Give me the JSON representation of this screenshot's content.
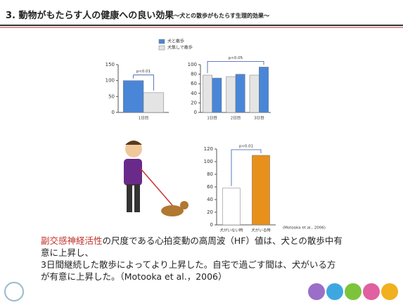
{
  "title": "3. 動物がもたらす人の健康への良い効果",
  "subtitle": "～犬との散歩がもたらす生理的効果～",
  "chart_data": [
    {
      "type": "bar",
      "categories": [
        "1日目"
      ],
      "series": [
        {
          "name": "犬と散歩",
          "color": "#4a86d8",
          "values": [
            100
          ]
        },
        {
          "name": "犬無しで散歩",
          "color": "#e4e4e4",
          "values": [
            62
          ]
        }
      ],
      "ylim": [
        0,
        150
      ],
      "yticks": [
        0,
        50,
        100,
        150
      ],
      "annotation": "p<0.01"
    },
    {
      "type": "bar",
      "categories": [
        "1日目",
        "2日目",
        "3日目"
      ],
      "series": [
        {
          "color": "#e4e4e4",
          "values": [
            78,
            75,
            78
          ]
        },
        {
          "color": "#4a86d8",
          "values": [
            72,
            80,
            95
          ]
        }
      ],
      "ylim": [
        0,
        100
      ],
      "yticks": [
        0,
        20,
        40,
        60,
        80,
        100
      ],
      "annotation": "p<0.05"
    },
    {
      "type": "bar",
      "categories": [
        "犬がいない時",
        "犬がいる時"
      ],
      "values": [
        58,
        110
      ],
      "colors": [
        "#ffffff",
        "#e8901c"
      ],
      "ylim": [
        0,
        120
      ],
      "yticks": [
        0,
        20,
        40,
        60,
        80,
        100,
        120
      ],
      "annotation": "p<0.01",
      "citation": "(Motooka et al., 2006)"
    }
  ],
  "body": {
    "highlight": "副交感神経活性",
    "lines": [
      "の尺度である心拍変動の高周波（HF）値は、犬との散歩中有",
      "意に上昇し、",
      "3日間継続した散歩によってより上昇した。自宅で過ごす間は、犬がいる方",
      "が有意に上昇した。（Motooka et al.，2006）"
    ]
  }
}
